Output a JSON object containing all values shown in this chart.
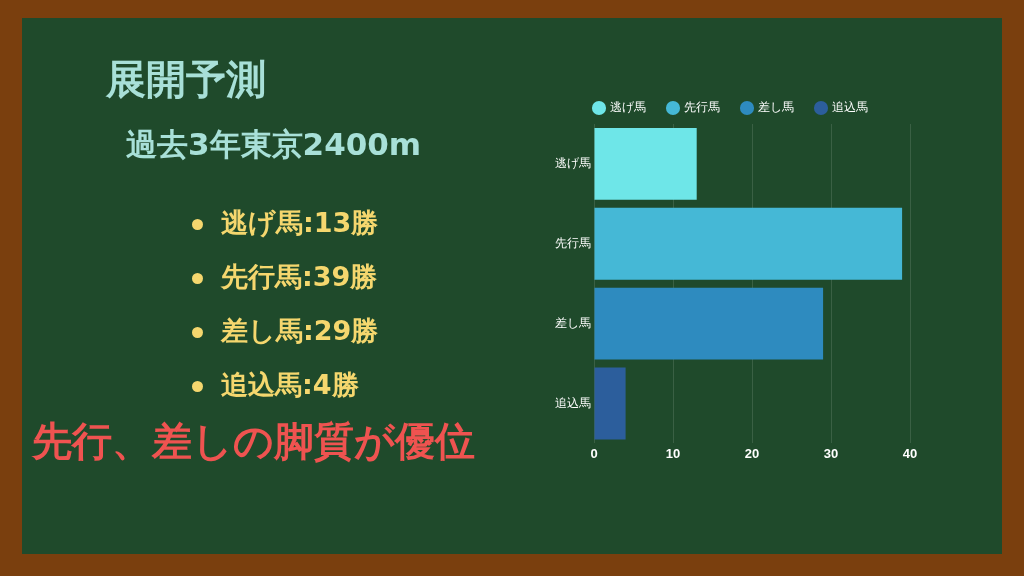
{
  "chart_data": {
    "type": "bar",
    "orientation": "horizontal",
    "title": "展開予測",
    "subtitle": "過去3年東京2400m",
    "categories": [
      "逃げ馬",
      "先行馬",
      "差し馬",
      "追込馬"
    ],
    "series": [
      {
        "name": "逃げ馬",
        "color": "#6ee6e8",
        "values": [
          13,
          null,
          null,
          null
        ]
      },
      {
        "name": "先行馬",
        "color": "#45b8d6",
        "values": [
          null,
          39,
          null,
          null
        ]
      },
      {
        "name": "差し馬",
        "color": "#2e8bbf",
        "values": [
          null,
          null,
          29,
          null
        ]
      },
      {
        "name": "追込馬",
        "color": "#2c5e9c",
        "values": [
          null,
          null,
          null,
          4
        ]
      }
    ],
    "xlim": [
      0,
      40
    ],
    "xticks": [
      0,
      10,
      20,
      30,
      40
    ],
    "grid": "x",
    "legend": "top",
    "annotations": [
      "逃げ馬:13勝",
      "先行馬:39勝",
      "差し馬:29勝",
      "追込馬:4勝",
      "先行、差しの脚質が優位"
    ]
  }
}
